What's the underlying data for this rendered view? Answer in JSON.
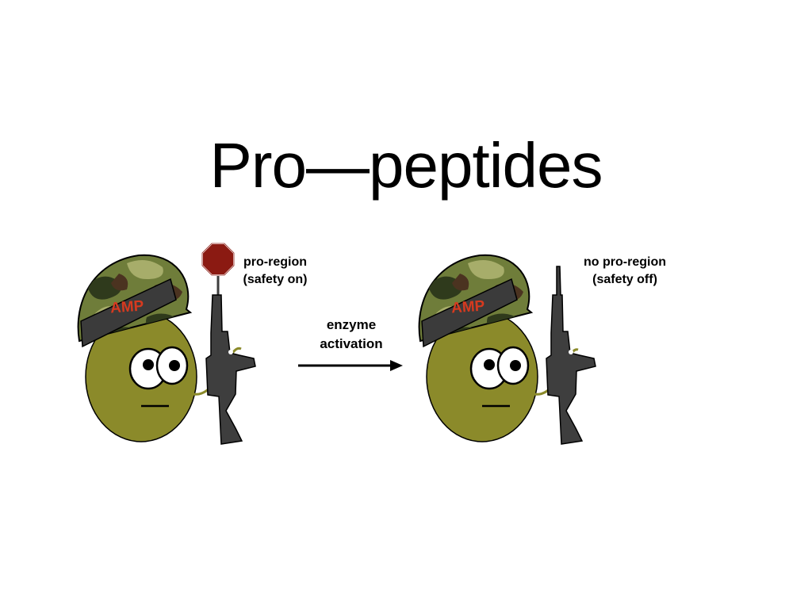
{
  "title": "Pro—peptides",
  "left_character": {
    "helmet_label": "AMP",
    "annotation": {
      "line1": "pro-region",
      "line2": "(safety on)"
    },
    "has_stop_sign": true
  },
  "arrow": {
    "line1": "enzyme",
    "line2": "activation"
  },
  "right_character": {
    "helmet_label": "AMP",
    "annotation": {
      "line1": "no pro-region",
      "line2": "(safety off)"
    },
    "has_stop_sign": false
  },
  "colors": {
    "body": "#8b8a2a",
    "helmet_base": "#6f7d3a",
    "helmet_band": "#3b3b3b",
    "helmet_text": "#d63a1f",
    "rifle": "#3e3e3e",
    "stop_sign": "#8b1a12",
    "strap": "#8b8a2a"
  }
}
